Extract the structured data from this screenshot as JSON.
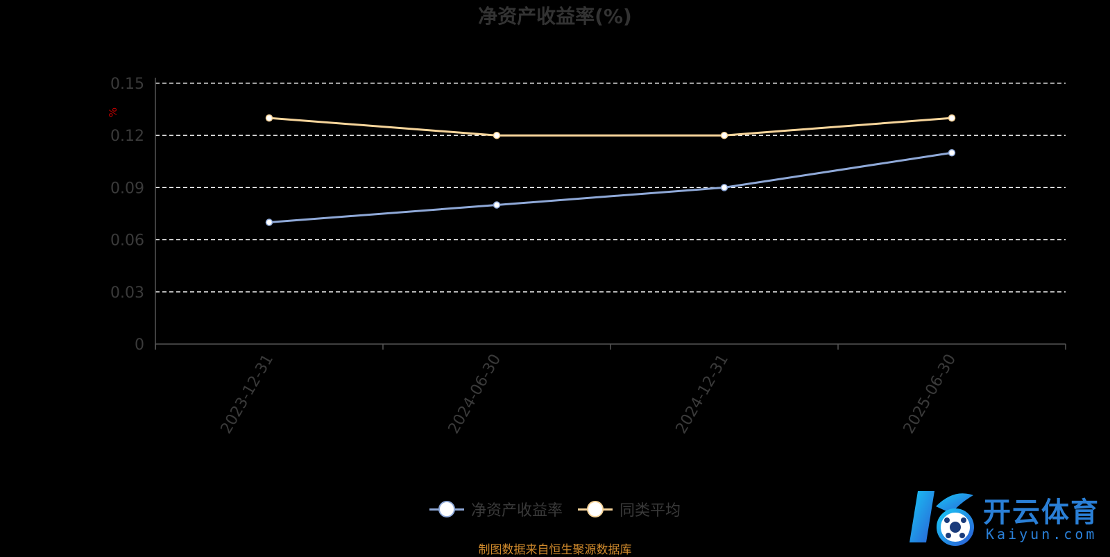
{
  "chart_data": {
    "type": "line",
    "title": "净资产收益率(%)",
    "ylabel": "%",
    "categories": [
      "2023-12-31",
      "2024-06-30",
      "2024-12-31",
      "2025-06-30"
    ],
    "series": [
      {
        "name": "净资产收益率",
        "values": [
          0.07,
          0.08,
          0.09,
          0.11
        ],
        "color": "#8fa9d8"
      },
      {
        "name": "同类平均",
        "values": [
          0.13,
          0.12,
          0.12,
          0.13
        ],
        "color": "#f7d59b"
      }
    ],
    "ylim": [
      0,
      0.15
    ],
    "yticks": [
      "0",
      "0.03",
      "0.06",
      "0.09",
      "0.12",
      "0.15"
    ],
    "grid": true,
    "legend_position": "bottom-center"
  },
  "source_note": "制图数据来自恒生聚源数据库",
  "watermark": {
    "text": "开云体育",
    "sub": "Kaiyun.com"
  },
  "colors": {
    "background": "#000000",
    "axis": "#555555",
    "grid": "#ffffff",
    "ylabel": "#c00000"
  }
}
